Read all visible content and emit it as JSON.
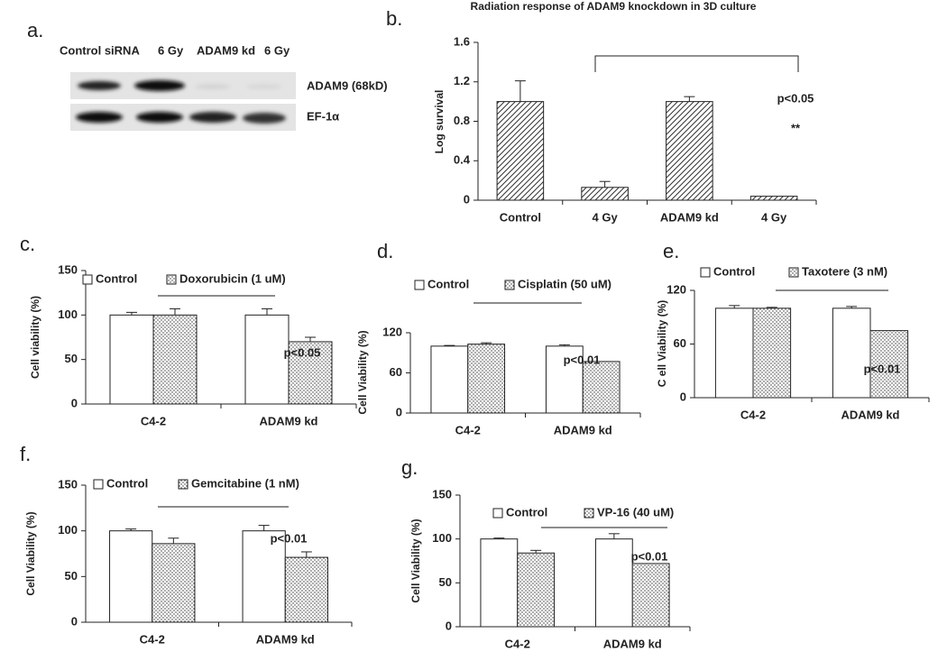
{
  "blot": {
    "label": "a.",
    "lanes": [
      "Control siRNA",
      "6 Gy",
      "ADAM9 kd",
      "6 Gy"
    ],
    "bands": [
      "ADAM9 (68kD)",
      "EF-1α"
    ]
  },
  "chart_data": [
    {
      "type": "bar",
      "panel_label": "b.",
      "title": "Radiation response of ADAM9 knockdown in 3D culture",
      "y_label": "Log survival",
      "categories": [
        "Control",
        "4 Gy",
        "ADAM9 kd",
        "4 Gy"
      ],
      "series": [
        {
          "color": "#ffffff",
          "hatch": "diagonal",
          "values": [
            1.0,
            0.13,
            1.0,
            0.04
          ],
          "errors": [
            0.21,
            0.06,
            0.05,
            null
          ]
        }
      ],
      "ylim": [
        0,
        1.6
      ],
      "yticks": [
        0,
        0.4,
        0.8,
        1.2,
        1.6
      ],
      "annotations": [
        "p<0.05",
        "**"
      ]
    },
    {
      "type": "bar",
      "panel_label": "c.",
      "y_label": "Cell viability (%)",
      "categories": [
        "C4-2",
        "ADAM9 kd"
      ],
      "series": [
        {
          "name": "Control",
          "color": "#ffffff",
          "values": [
            100,
            100
          ],
          "errors": [
            3,
            7
          ]
        },
        {
          "name": "Doxorubicin (1 uM)",
          "color": "#ffffff",
          "hatch": "dots",
          "values": [
            100,
            70
          ],
          "errors": [
            7,
            5
          ]
        }
      ],
      "ylim": [
        0,
        150
      ],
      "yticks": [
        0,
        50,
        100,
        150
      ],
      "annotations": [
        "p<0.05"
      ]
    },
    {
      "type": "bar",
      "panel_label": "d.",
      "y_label": "Cell Viability (%)",
      "categories": [
        "C4-2",
        "ADAM9 kd"
      ],
      "series": [
        {
          "name": "Control",
          "color": "#ffffff",
          "values": [
            100,
            100
          ],
          "errors": [
            1,
            2
          ]
        },
        {
          "name": "Cisplatin (50 uM)",
          "color": "#ffffff",
          "hatch": "dots",
          "values": [
            103,
            77
          ],
          "errors": [
            2,
            null
          ]
        }
      ],
      "ylim": [
        0,
        120
      ],
      "yticks": [
        0,
        60,
        120
      ],
      "annotations": [
        "p<0.01"
      ]
    },
    {
      "type": "bar",
      "panel_label": "e.",
      "y_label": "C ell Viability (%)",
      "categories": [
        "C4-2",
        "ADAM9 kd"
      ],
      "series": [
        {
          "name": "Control",
          "color": "#ffffff",
          "values": [
            100,
            100
          ],
          "errors": [
            3,
            2
          ]
        },
        {
          "name": "Taxotere (3 nM)",
          "color": "#ffffff",
          "hatch": "dots",
          "values": [
            100,
            75
          ],
          "errors": [
            1,
            null
          ]
        }
      ],
      "ylim": [
        0,
        120
      ],
      "yticks": [
        0,
        60,
        120
      ],
      "annotations": [
        "p<0.01"
      ]
    },
    {
      "type": "bar",
      "panel_label": "f.",
      "y_label": "Cell Viability (%)",
      "categories": [
        "C4-2",
        "ADAM9 kd"
      ],
      "series": [
        {
          "name": "Control",
          "color": "#ffffff",
          "values": [
            100,
            100
          ],
          "errors": [
            2,
            6
          ]
        },
        {
          "name": "Gemcitabine (1 nM)",
          "color": "#ffffff",
          "hatch": "dots",
          "values": [
            86,
            71
          ],
          "errors": [
            6,
            6
          ]
        }
      ],
      "ylim": [
        0,
        150
      ],
      "yticks": [
        0,
        50,
        100,
        150
      ],
      "annotations": [
        "p<0.01"
      ]
    },
    {
      "type": "bar",
      "panel_label": "g.",
      "y_label": "Cell Viability (%)",
      "categories": [
        "C4-2",
        "ADAM9 kd"
      ],
      "series": [
        {
          "name": "Control",
          "color": "#ffffff",
          "values": [
            100,
            100
          ],
          "errors": [
            1,
            6
          ]
        },
        {
          "name": "VP-16 (40 uM)",
          "color": "#ffffff",
          "hatch": "dots",
          "values": [
            84,
            72
          ],
          "errors": [
            3,
            null
          ]
        }
      ],
      "ylim": [
        0,
        150
      ],
      "yticks": [
        0,
        50,
        100,
        150
      ],
      "annotations": [
        "p<0.01"
      ]
    }
  ]
}
